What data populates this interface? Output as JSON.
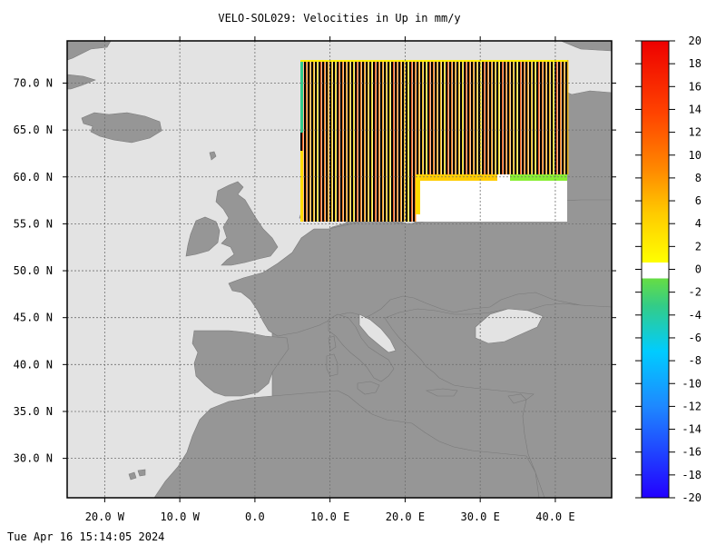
{
  "title": "VELO-SOL029: Velocities in Up in mm/y",
  "timestamp": "Tue Apr 16 15:14:05 2024",
  "map": {
    "lon_range": [
      -25,
      47.5
    ],
    "lat_range": [
      25.8,
      74.5
    ],
    "lon_ticks": [
      {
        "value": -20,
        "label": "20.0 W"
      },
      {
        "value": -10,
        "label": "10.0 W"
      },
      {
        "value": 0,
        "label": "0.0"
      },
      {
        "value": 10,
        "label": "10.0 E"
      },
      {
        "value": 20,
        "label": "20.0 E"
      },
      {
        "value": 30,
        "label": "30.0 E"
      },
      {
        "value": 40,
        "label": "40.0 E"
      }
    ],
    "lat_ticks": [
      {
        "value": 70,
        "label": "70.0 N"
      },
      {
        "value": 65,
        "label": "65.0 N"
      },
      {
        "value": 60,
        "label": "60.0 N"
      },
      {
        "value": 55,
        "label": "55.0 N"
      },
      {
        "value": 50,
        "label": "50.0 N"
      },
      {
        "value": 45,
        "label": "45.0 N"
      },
      {
        "value": 40,
        "label": "40.0 N"
      },
      {
        "value": 35,
        "label": "35.0 N"
      },
      {
        "value": 30,
        "label": "30.0 N"
      }
    ],
    "grid": true,
    "colors": {
      "land": "#969696",
      "sea": "#e3e3e3",
      "no_data": "#ffffff"
    },
    "velocity_field_extent": {
      "lon": [
        5,
        40
      ],
      "lat": [
        55,
        72
      ]
    }
  },
  "colorbar": {
    "min": -20,
    "max": 20,
    "tick_labels": [
      "20",
      "18",
      "16",
      "14",
      "12",
      "10",
      "8",
      "6",
      "4",
      "2",
      "0",
      "-2",
      "-4",
      "-6",
      "-8",
      "-10",
      "-12",
      "-14",
      "-16",
      "-18",
      "-20"
    ],
    "colors": [
      "#2200ff",
      "#1e88ff",
      "#00ccff",
      "#33cc88",
      "#66dd44",
      "#ffff00",
      "#ffaa00",
      "#ff5500",
      "#ff2200",
      "#e60000"
    ]
  }
}
